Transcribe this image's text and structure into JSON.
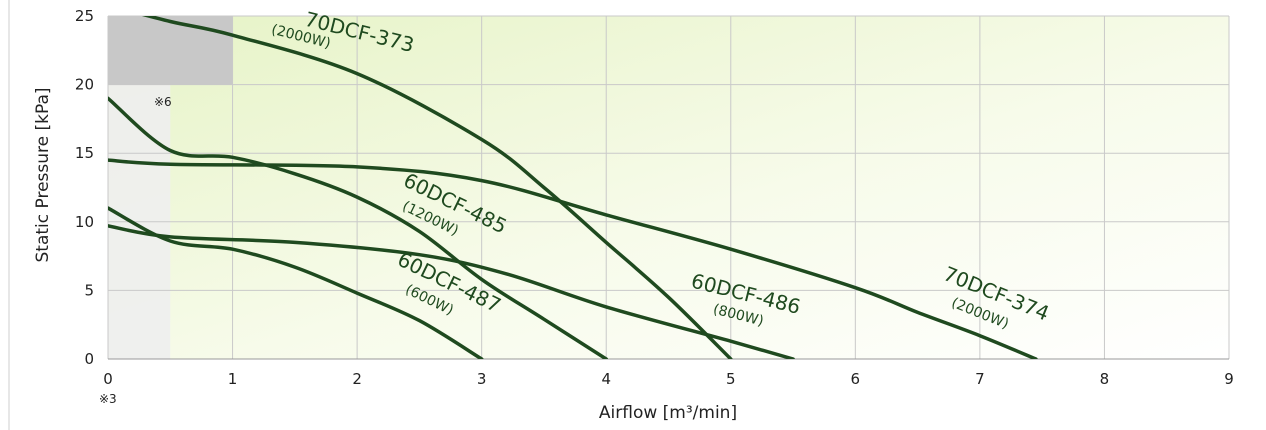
{
  "chart_data": {
    "type": "line",
    "xlabel": "Airflow [m³/min]",
    "ylabel": "Static Pressure [kPa]",
    "xlim": [
      0,
      9
    ],
    "ylim": [
      0,
      25
    ],
    "xticks": [
      0,
      1,
      2,
      3,
      4,
      5,
      6,
      7,
      8,
      9
    ],
    "yticks": [
      0,
      5,
      10,
      15,
      20,
      25
    ],
    "grid": true,
    "notes": [
      "※6",
      "※3"
    ],
    "line_color": "#1f4a1f",
    "shade_colors": [
      "#c8c8c8",
      "#eeeeee"
    ],
    "series": [
      {
        "name": "70DCF-373",
        "power": "(2000W)",
        "points": [
          [
            0,
            25.8
          ],
          [
            0.5,
            24.6
          ],
          [
            1,
            23.6
          ],
          [
            2,
            20.8
          ],
          [
            3,
            16
          ],
          [
            3.5,
            12.5
          ],
          [
            4,
            8.5
          ],
          [
            4.5,
            4.5
          ],
          [
            5,
            0
          ]
        ]
      },
      {
        "name": "60DCF-485",
        "power": "(1200W)",
        "points": [
          [
            0,
            19
          ],
          [
            0.5,
            15.2
          ],
          [
            1,
            14.7
          ],
          [
            1.5,
            13.5
          ],
          [
            2,
            11.8
          ],
          [
            2.5,
            9.3
          ],
          [
            3,
            5.8
          ],
          [
            3.5,
            2.9
          ],
          [
            4,
            0
          ]
        ]
      },
      {
        "name": "70DCF-374",
        "power": "(2000W)",
        "points": [
          [
            0,
            14.5
          ],
          [
            0.5,
            14.2
          ],
          [
            2,
            14
          ],
          [
            3,
            13
          ],
          [
            4,
            10.5
          ],
          [
            5,
            8
          ],
          [
            6,
            5.2
          ],
          [
            6.5,
            3.4
          ],
          [
            7,
            1.7
          ],
          [
            7.45,
            0
          ]
        ]
      },
      {
        "name": "60DCF-486",
        "power": "(800W)",
        "points": [
          [
            0,
            9.7
          ],
          [
            0.5,
            8.9
          ],
          [
            1.5,
            8.5
          ],
          [
            2.5,
            7.6
          ],
          [
            3.2,
            6.2
          ],
          [
            4,
            3.8
          ],
          [
            5,
            1.3
          ],
          [
            5.5,
            0
          ]
        ]
      },
      {
        "name": "60DCF-487",
        "power": "(600W)",
        "points": [
          [
            0,
            11
          ],
          [
            0.5,
            8.6
          ],
          [
            1,
            8
          ],
          [
            1.5,
            6.7
          ],
          [
            2,
            4.8
          ],
          [
            2.5,
            2.8
          ],
          [
            3,
            0
          ]
        ]
      }
    ]
  }
}
